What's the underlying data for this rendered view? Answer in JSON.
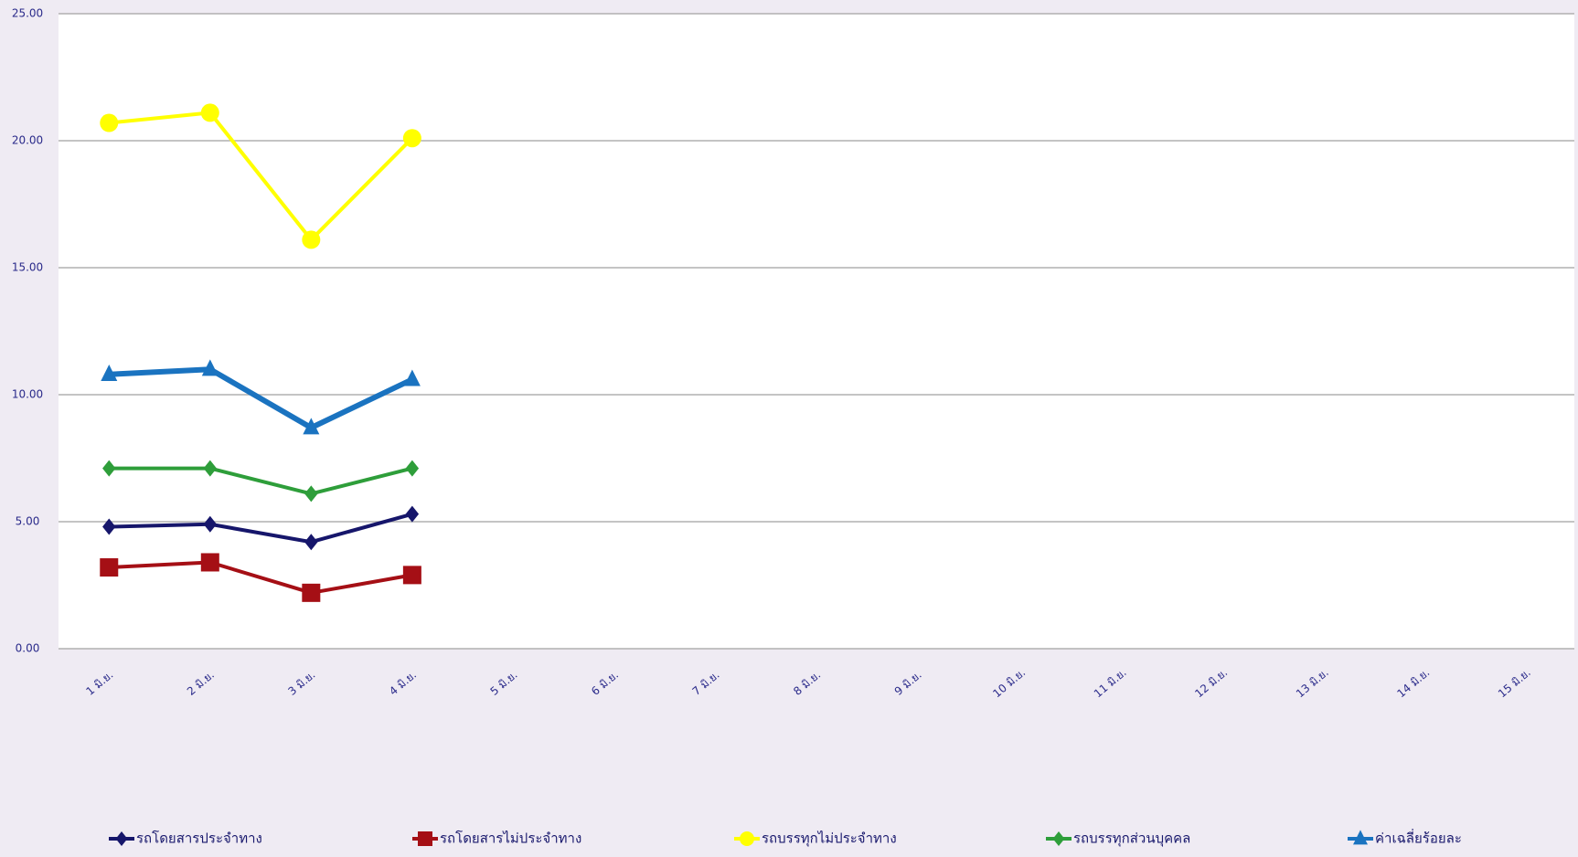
{
  "chart_data": {
    "type": "line",
    "categories": [
      "1 มิ.ย.",
      "2 มิ.ย.",
      "3 มิ.ย.",
      "4 มิ.ย.",
      "5 มิ.ย.",
      "6 มิ.ย.",
      "7 มิ.ย.",
      "8 มิ.ย.",
      "9 มิ.ย.",
      "10 มิ.ย.",
      "11 มิ.ย.",
      "12 มิ.ย.",
      "13 มิ.ย.",
      "14 มิ.ย.",
      "15 มิ.ย."
    ],
    "series": [
      {
        "name": "รถโดยสารประจำทาง",
        "color": "#16166b",
        "marker": "diamond",
        "values": [
          4.8,
          4.9,
          4.2,
          5.3,
          null,
          null,
          null,
          null,
          null,
          null,
          null,
          null,
          null,
          null,
          null
        ]
      },
      {
        "name": "รถโดยสารไม่ประจำทาง",
        "color": "#a50f15",
        "marker": "square",
        "values": [
          3.2,
          3.4,
          2.2,
          2.9,
          null,
          null,
          null,
          null,
          null,
          null,
          null,
          null,
          null,
          null,
          null
        ]
      },
      {
        "name": "รถบรรทุกไม่ประจำทาง",
        "color": "#ffff00",
        "marker": "circle",
        "values": [
          20.7,
          21.1,
          16.1,
          20.1,
          null,
          null,
          null,
          null,
          null,
          null,
          null,
          null,
          null,
          null,
          null
        ]
      },
      {
        "name": "รถบรรทุกส่วนบุคคล",
        "color": "#2e9e3a",
        "marker": "diamond",
        "values": [
          7.1,
          7.1,
          6.1,
          7.1,
          null,
          null,
          null,
          null,
          null,
          null,
          null,
          null,
          null,
          null,
          null
        ]
      },
      {
        "name": "ค่าเฉลี่ยร้อยละ",
        "color": "#1a73c0",
        "marker": "triangle",
        "values": [
          10.8,
          11.0,
          8.7,
          10.6,
          null,
          null,
          null,
          null,
          null,
          null,
          null,
          null,
          null,
          null,
          null
        ]
      }
    ],
    "ylim": [
      0,
      25
    ],
    "yticks": [
      {
        "value": 0,
        "label": "0.00"
      },
      {
        "value": 5,
        "label": "5.00"
      },
      {
        "value": 10,
        "label": "10.00"
      },
      {
        "value": 15,
        "label": "15.00"
      },
      {
        "value": 20,
        "label": "20.00"
      },
      {
        "value": 25,
        "label": "25.00"
      }
    ],
    "grid": true
  }
}
